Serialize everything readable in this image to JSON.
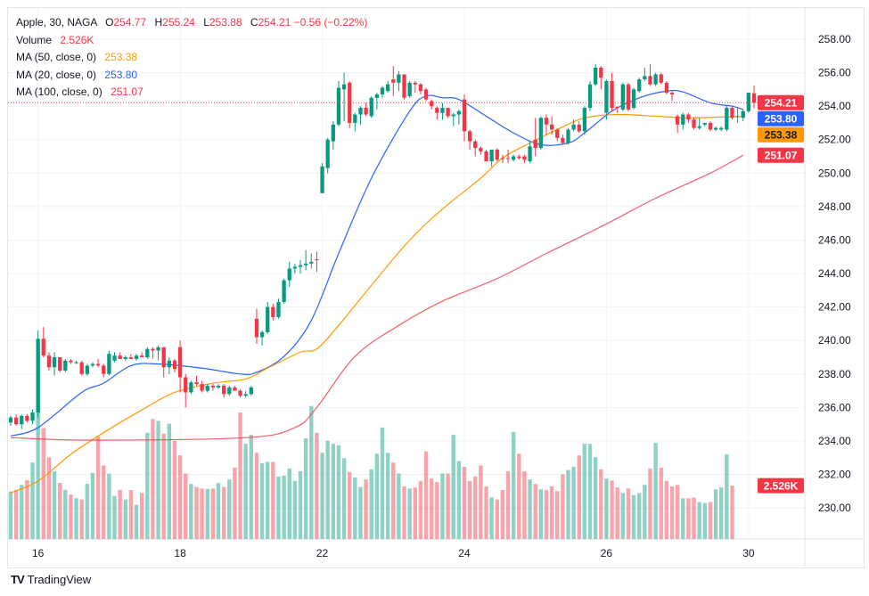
{
  "legend": {
    "symbol": "Apple, 30, NAGA",
    "o_label": "O",
    "o": "254.77",
    "h_label": "H",
    "h": "255.24",
    "l_label": "L",
    "l": "253.88",
    "c_label": "C",
    "c": "254.21",
    "change": "−0.56 (−0.22%)",
    "volume_label": "Volume",
    "volume": "2.526K",
    "ma50_label": "MA (50, close, 0)",
    "ma50": "253.38",
    "ma20_label": "MA (20, close, 0)",
    "ma20": "253.80",
    "ma100_label": "MA (100, close, 0)",
    "ma100": "251.07"
  },
  "brand": {
    "logo": "17",
    "name": "TradingView"
  },
  "colors": {
    "up": "#089981",
    "down": "#f23645",
    "ma20": "#2962ff",
    "ma50": "#ff9800",
    "ma100": "#f23645",
    "grid": "#f0f3fa"
  },
  "chart_data": {
    "type": "candlestick",
    "ylim": [
      229,
      259
    ],
    "y_ticks": [
      "230.00",
      "232.00",
      "234.00",
      "236.00",
      "238.00",
      "240.00",
      "242.00",
      "244.00",
      "246.00",
      "248.00",
      "250.00",
      "252.00",
      "254.00",
      "256.00",
      "258.00"
    ],
    "x_ticks": [
      "16",
      "18",
      "22",
      "24",
      "26",
      "30"
    ],
    "price_labels": [
      {
        "value": "254.21",
        "color": "#f23645",
        "text_color": "#ffffff"
      },
      {
        "value": "253.80",
        "color": "#2962ff",
        "text_color": "#ffffff"
      },
      {
        "value": "253.38",
        "color": "#ff9800",
        "text_color": "#131722"
      },
      {
        "value": "251.07",
        "color": "#f23645",
        "text_color": "#ffffff"
      }
    ],
    "volume_label": {
      "value": "2.526K",
      "color": "#f23645"
    },
    "last_price": 254.21,
    "candles": [
      [
        235.1,
        235.5,
        234.9,
        235.4
      ],
      [
        235.4,
        235.6,
        234.9,
        235.0
      ],
      [
        235.0,
        235.6,
        234.7,
        235.5
      ],
      [
        235.5,
        235.6,
        235.1,
        235.2
      ],
      [
        235.2,
        235.9,
        235.0,
        235.7
      ],
      [
        235.7,
        240.6,
        235.4,
        240.1
      ],
      [
        240.1,
        240.8,
        239.0,
        239.1
      ],
      [
        239.1,
        239.3,
        238.2,
        238.4
      ],
      [
        238.4,
        239.3,
        237.9,
        239.0
      ],
      [
        239.0,
        239.0,
        238.1,
        238.2
      ],
      [
        238.2,
        238.9,
        238.1,
        238.8
      ],
      [
        238.8,
        238.9,
        238.6,
        238.7
      ],
      [
        238.7,
        238.8,
        238.6,
        238.7
      ],
      [
        238.7,
        238.8,
        237.9,
        238.0
      ],
      [
        238.0,
        238.6,
        237.9,
        238.5
      ],
      [
        238.5,
        238.7,
        238.4,
        238.6
      ],
      [
        238.6,
        238.9,
        238.4,
        238.5
      ],
      [
        238.5,
        238.6,
        237.8,
        238.0
      ],
      [
        238.0,
        239.4,
        237.9,
        239.2
      ],
      [
        238.8,
        239.3,
        238.7,
        239.1
      ],
      [
        239.1,
        239.3,
        238.9,
        238.9
      ],
      [
        238.9,
        239.1,
        238.8,
        239.0
      ],
      [
        239.0,
        239.2,
        238.9,
        238.9
      ],
      [
        238.9,
        239.2,
        238.8,
        239.1
      ],
      [
        239.1,
        239.3,
        239.0,
        239.0
      ],
      [
        239.0,
        239.6,
        238.9,
        239.5
      ],
      [
        239.5,
        239.6,
        238.9,
        239.4
      ],
      [
        239.4,
        239.7,
        238.8,
        239.6
      ],
      [
        239.6,
        239.6,
        237.8,
        238.4
      ],
      [
        238.4,
        239.0,
        238.0,
        238.8
      ],
      [
        238.8,
        238.9,
        238.1,
        238.3
      ],
      [
        239.6,
        240.0,
        236.9,
        237.8
      ],
      [
        237.8,
        238.0,
        236.0,
        236.9
      ],
      [
        236.9,
        237.6,
        236.8,
        237.5
      ],
      [
        237.5,
        237.9,
        237.3,
        237.4
      ],
      [
        237.4,
        237.6,
        236.9,
        237.0
      ],
      [
        237.0,
        237.4,
        236.9,
        237.3
      ],
      [
        237.3,
        237.4,
        237.0,
        237.2
      ],
      [
        237.2,
        237.4,
        237.1,
        237.3
      ],
      [
        237.3,
        237.4,
        236.6,
        236.8
      ],
      [
        236.8,
        237.3,
        236.7,
        237.2
      ],
      [
        237.2,
        237.3,
        237.0,
        237.0
      ],
      [
        237.0,
        237.1,
        236.6,
        236.7
      ],
      [
        236.7,
        237.0,
        236.6,
        236.8
      ],
      [
        236.8,
        237.3,
        236.7,
        237.2
      ],
      [
        241.3,
        241.9,
        239.8,
        240.2
      ],
      [
        240.2,
        240.6,
        239.7,
        240.5
      ],
      [
        240.5,
        242.3,
        240.4,
        242.0
      ],
      [
        242.0,
        242.2,
        241.2,
        241.4
      ],
      [
        241.4,
        242.5,
        241.3,
        242.3
      ],
      [
        242.3,
        243.7,
        242.2,
        243.6
      ],
      [
        243.6,
        244.7,
        243.2,
        244.3
      ],
      [
        244.3,
        244.6,
        244.0,
        244.4
      ],
      [
        244.4,
        244.8,
        244.0,
        244.5
      ],
      [
        244.5,
        245.4,
        244.2,
        244.6
      ],
      [
        244.6,
        245.2,
        244.3,
        244.7
      ],
      [
        244.85,
        245.3,
        244.1,
        244.8
      ],
      [
        248.8,
        250.6,
        248.8,
        250.4
      ],
      [
        250.3,
        252.1,
        250.0,
        252.0
      ],
      [
        251.9,
        253.1,
        251.4,
        252.9
      ],
      [
        252.9,
        255.5,
        252.8,
        255.1
      ],
      [
        255.0,
        256.0,
        253.1,
        255.3
      ],
      [
        255.4,
        255.5,
        252.7,
        253.0
      ],
      [
        253.0,
        253.6,
        252.5,
        253.5
      ],
      [
        253.5,
        254.0,
        252.9,
        253.9
      ],
      [
        253.9,
        254.2,
        253.4,
        253.5
      ],
      [
        253.4,
        254.6,
        253.3,
        254.5
      ],
      [
        254.5,
        254.8,
        253.8,
        254.7
      ],
      [
        254.7,
        255.2,
        254.5,
        255.1
      ],
      [
        254.9,
        255.5,
        254.8,
        255.3
      ],
      [
        255.6,
        256.4,
        254.6,
        255.4
      ],
      [
        255.4,
        256.1,
        254.9,
        255.9
      ],
      [
        255.9,
        255.9,
        254.4,
        254.5
      ],
      [
        254.6,
        255.5,
        254.5,
        255.4
      ],
      [
        255.4,
        255.5,
        254.8,
        255.3
      ],
      [
        255.3,
        255.4,
        254.7,
        254.9
      ],
      [
        255.0,
        255.1,
        254.3,
        254.4
      ],
      [
        254.3,
        254.4,
        253.8,
        254.0
      ],
      [
        253.9,
        254.0,
        253.2,
        253.6
      ],
      [
        253.6,
        254.2,
        253.2,
        253.9
      ],
      [
        253.9,
        253.9,
        253.3,
        253.4
      ],
      [
        253.4,
        253.6,
        252.8,
        253.5
      ],
      [
        253.5,
        253.8,
        252.9,
        253.7
      ],
      [
        254.4,
        254.7,
        251.9,
        252.5
      ],
      [
        252.5,
        252.6,
        251.4,
        251.9
      ],
      [
        251.9,
        252.0,
        251.0,
        251.5
      ],
      [
        251.5,
        251.6,
        251.1,
        251.3
      ],
      [
        251.3,
        251.4,
        250.7,
        250.7
      ],
      [
        250.7,
        251.4,
        250.4,
        251.4
      ],
      [
        251.4,
        251.5,
        250.7,
        250.8
      ],
      [
        250.9,
        251.1,
        250.6,
        250.88
      ],
      [
        250.9,
        251.4,
        250.6,
        250.85
      ],
      [
        250.8,
        251.1,
        250.7,
        251.0
      ],
      [
        251.0,
        251.1,
        250.8,
        250.9
      ],
      [
        251.0,
        251.1,
        250.6,
        250.8
      ],
      [
        250.7,
        251.9,
        250.6,
        251.6
      ],
      [
        252.0,
        253.3,
        251.0,
        251.5
      ],
      [
        251.5,
        253.4,
        251.4,
        253.3
      ],
      [
        253.3,
        253.5,
        252.3,
        252.9
      ],
      [
        252.9,
        253.4,
        252.3,
        252.6
      ],
      [
        252.6,
        252.7,
        251.9,
        252.1
      ],
      [
        252.1,
        252.3,
        251.7,
        251.8
      ],
      [
        251.8,
        252.7,
        251.7,
        252.6
      ],
      [
        252.6,
        253.2,
        252.5,
        252.9
      ],
      [
        252.9,
        253.1,
        252.4,
        252.5
      ],
      [
        252.5,
        254.0,
        252.3,
        253.9
      ],
      [
        253.9,
        255.5,
        253.7,
        255.3
      ],
      [
        255.3,
        256.5,
        255.2,
        256.3
      ],
      [
        256.3,
        256.4,
        255.0,
        255.7
      ],
      [
        253.6,
        255.6,
        253.2,
        255.5
      ],
      [
        255.5,
        256.0,
        253.7,
        253.9
      ],
      [
        253.95,
        254.0,
        253.6,
        253.9
      ],
      [
        253.8,
        255.4,
        253.7,
        255.3
      ],
      [
        255.3,
        255.4,
        253.7,
        253.8
      ],
      [
        253.9,
        255.1,
        253.8,
        255.0
      ],
      [
        254.9,
        255.7,
        254.8,
        255.6
      ],
      [
        255.6,
        256.3,
        255.5,
        255.8
      ],
      [
        255.8,
        256.5,
        255.2,
        255.3
      ],
      [
        255.3,
        256.0,
        255.2,
        255.9
      ],
      [
        255.9,
        256.0,
        255.3,
        255.4
      ],
      [
        255.4,
        255.5,
        254.7,
        254.8
      ],
      [
        254.8,
        254.9,
        254.3,
        254.7
      ],
      [
        253.4,
        253.5,
        252.4,
        252.9
      ],
      [
        252.9,
        253.6,
        252.6,
        253.5
      ],
      [
        253.5,
        253.6,
        253.0,
        253.2
      ],
      [
        253.2,
        253.3,
        252.6,
        252.7
      ],
      [
        252.7,
        253.3,
        252.6,
        252.8
      ],
      [
        252.9,
        253.0,
        252.8,
        253.0
      ],
      [
        253.0,
        253.1,
        252.5,
        252.6
      ],
      [
        252.6,
        252.8,
        252.5,
        252.7
      ],
      [
        252.6,
        252.8,
        252.5,
        252.7
      ],
      [
        252.6,
        254.0,
        252.5,
        253.9
      ],
      [
        253.9,
        254.0,
        253.2,
        253.3
      ],
      [
        253.4,
        253.9,
        253.0,
        253.4
      ],
      [
        253.3,
        253.8,
        253.1,
        253.7
      ],
      [
        253.7,
        254.8,
        253.6,
        254.8
      ],
      [
        254.77,
        255.24,
        253.88,
        254.21
      ]
    ],
    "volume_k": [
      2.25,
      2.32,
      2.56,
      2.79,
      3.62,
      6.3,
      5.25,
      3.87,
      3.21,
      2.66,
      2.32,
      2.1,
      1.93,
      1.87,
      2.61,
      3.13,
      4.86,
      3.48,
      3.1,
      2.04,
      2.32,
      1.87,
      2.32,
      1.62,
      2.18,
      5.03,
      5.68,
      5.59,
      4.99,
      5.46,
      4.65,
      3.96,
      3.1,
      2.61,
      2.46,
      2.39,
      2.37,
      2.39,
      2.65,
      2.46,
      2.82,
      3.38,
      5.99,
      4.51,
      4.93,
      4.08,
      3.59,
      3.65,
      3.65,
      2.96,
      3.0,
      3.34,
      2.75,
      3.21,
      4.77,
      6.3,
      5.03,
      4.08,
      4.65,
      4.51,
      4.44,
      3.83,
      3.17,
      2.92,
      2.46,
      2.82,
      3.3,
      4.04,
      5.28,
      4.08,
      3.62,
      3.1,
      2.49,
      2.39,
      2.44,
      2.75,
      4.15,
      2.86,
      2.7,
      3.1,
      3.1,
      4.93,
      3.69,
      3.42,
      2.75,
      2.96,
      3.48,
      2.49,
      1.97,
      1.87,
      2.32,
      3.21,
      5.07,
      4.04,
      3.21,
      2.82,
      2.61,
      2.35,
      2.32,
      2.49,
      2.27,
      3.06,
      3.27,
      3.42,
      3.96,
      4.51,
      4.51,
      3.87,
      3.3,
      2.86,
      2.77,
      2.44,
      2.18,
      2.39,
      2.08,
      2.18,
      2.56,
      3.34,
      4.55,
      3.38,
      2.75,
      2.49,
      2.56,
      1.93,
      1.93,
      1.96,
      1.75,
      1.7,
      1.75,
      2.35,
      2.44,
      4.01,
      2.526
    ],
    "series": [
      {
        "name": "MA (20, close, 0)",
        "color": "#2962ff",
        "points": [
          [
            0,
            234.3
          ],
          [
            5,
            234.8
          ],
          [
            13,
            236.9
          ],
          [
            17,
            237.45
          ],
          [
            22,
            238.5
          ],
          [
            27,
            238.6
          ],
          [
            35,
            238.35
          ],
          [
            42,
            238.0
          ],
          [
            45,
            238.1
          ],
          [
            50,
            239.05
          ],
          [
            55,
            241.2
          ],
          [
            60,
            245.2
          ],
          [
            66,
            249.7
          ],
          [
            73,
            253.7
          ],
          [
            76,
            254.6
          ],
          [
            79,
            254.5
          ],
          [
            82,
            254.4
          ],
          [
            87,
            253.4
          ],
          [
            92,
            252.4
          ],
          [
            97,
            251.7
          ],
          [
            102,
            251.8
          ],
          [
            105,
            252.4
          ],
          [
            110,
            253.7
          ],
          [
            115,
            254.5
          ],
          [
            120,
            254.9
          ],
          [
            123,
            254.85
          ],
          [
            128,
            254.2
          ],
          [
            132,
            254.0
          ],
          [
            134,
            253.8
          ]
        ]
      },
      {
        "name": "MA (50, close, 0)",
        "color": "#ff9800",
        "points": [
          [
            0,
            230.9
          ],
          [
            5,
            231.6
          ],
          [
            11,
            233.2
          ],
          [
            17,
            234.5
          ],
          [
            24,
            235.85
          ],
          [
            30,
            236.9
          ],
          [
            37,
            237.45
          ],
          [
            43,
            237.7
          ],
          [
            47,
            238.35
          ],
          [
            53,
            239.3
          ],
          [
            56,
            239.5
          ],
          [
            60,
            240.9
          ],
          [
            66,
            243.3
          ],
          [
            73,
            246.0
          ],
          [
            79,
            247.85
          ],
          [
            86,
            249.7
          ],
          [
            90,
            250.9
          ],
          [
            95,
            251.8
          ],
          [
            100,
            252.6
          ],
          [
            105,
            253.3
          ],
          [
            111,
            253.5
          ],
          [
            118,
            253.4
          ],
          [
            124,
            253.3
          ],
          [
            130,
            253.35
          ],
          [
            134,
            253.38
          ]
        ]
      },
      {
        "name": "MA (100, close, 0)",
        "color": "#f23645",
        "points": [
          [
            0,
            234.2
          ],
          [
            14,
            234.05
          ],
          [
            43,
            234.2
          ],
          [
            52,
            234.8
          ],
          [
            56,
            236.0
          ],
          [
            63,
            239.05
          ],
          [
            71,
            240.9
          ],
          [
            79,
            242.35
          ],
          [
            89,
            243.7
          ],
          [
            98,
            245.2
          ],
          [
            108,
            246.8
          ],
          [
            118,
            248.5
          ],
          [
            128,
            250.0
          ],
          [
            134,
            251.07
          ]
        ]
      }
    ]
  }
}
